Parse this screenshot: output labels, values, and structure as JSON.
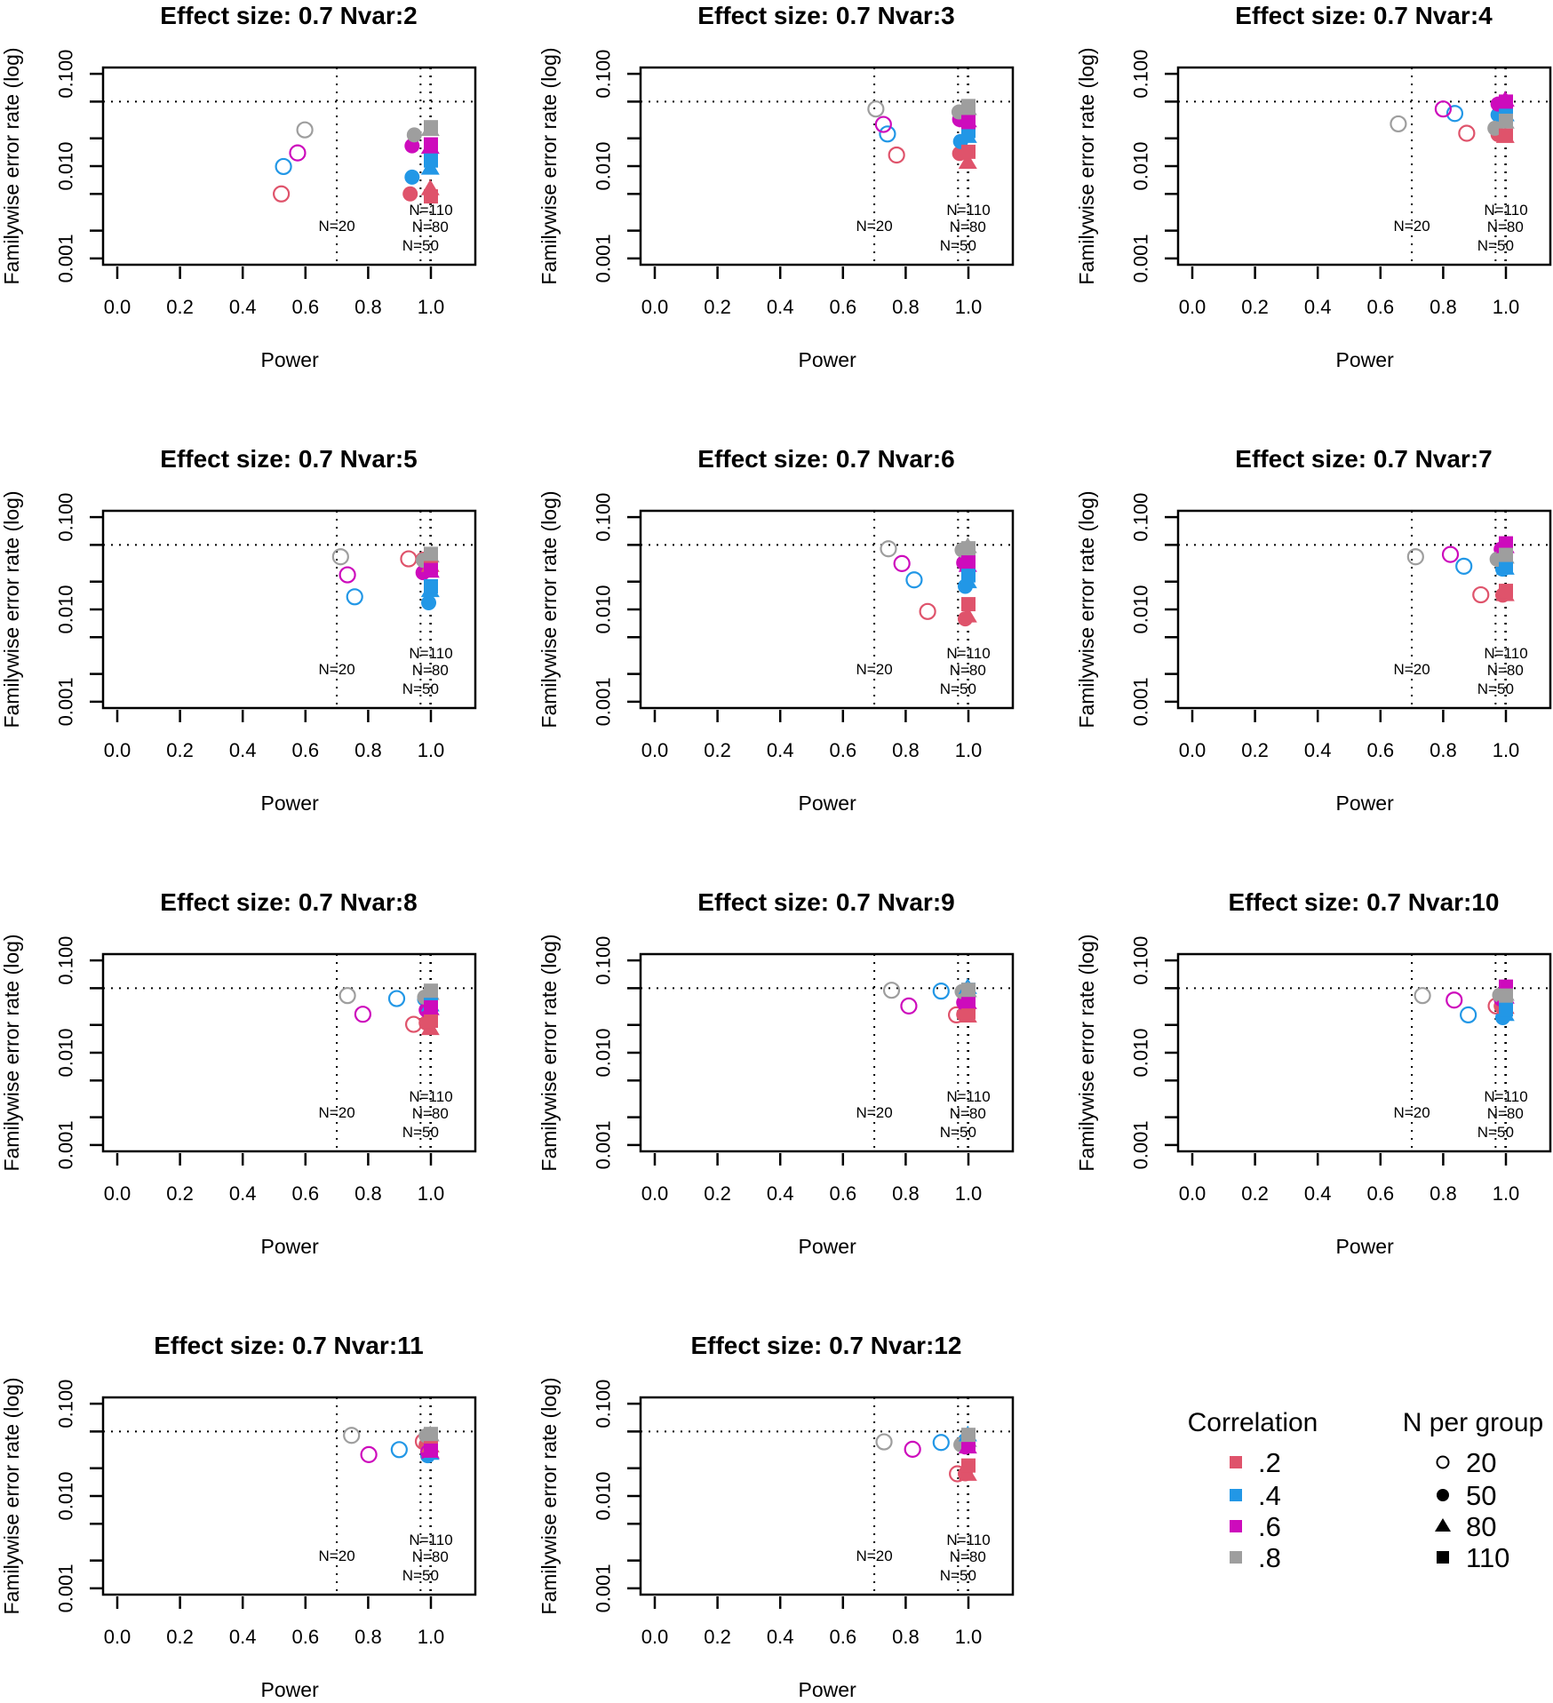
{
  "chart_data": {
    "type": "scatter",
    "layout": "small multiples, 3 columns",
    "xlabel": "Power",
    "ylabel": "Familywise error rate (log)",
    "xlim": [
      0,
      1.1
    ],
    "ylim": [
      0.001,
      0.1
    ],
    "y_scale": "log",
    "x_ticks": [
      "0.0",
      "0.2",
      "0.4",
      "0.6",
      "0.8",
      "1.0"
    ],
    "x_tick_values": [
      0,
      0.2,
      0.4,
      0.6,
      0.8,
      1.0
    ],
    "y_ticks": [
      "0.001",
      "0.010",
      "0.100"
    ],
    "y_tick_values": [
      0.001,
      0.01,
      0.1
    ],
    "y_minor_ticks": [
      0.001,
      0.002,
      0.005,
      0.01,
      0.02,
      0.05,
      0.1
    ],
    "reference_hline": 0.05,
    "reference_vlines": [
      {
        "label": "N=20",
        "power": 0.7
      },
      {
        "label": "N=50",
        "power": 0.967
      },
      {
        "label": "N=80",
        "power": 0.998
      },
      {
        "label": "N=110",
        "power": 1.0
      }
    ],
    "grid": false,
    "correlations": [
      {
        "label": ".2",
        "color": "#DF536B"
      },
      {
        "label": ".4",
        "color": "#2297E6"
      },
      {
        "label": ".6",
        "color": "#CD0BBC"
      },
      {
        "label": ".8",
        "color": "#9E9E9E"
      }
    ],
    "n_groups": [
      {
        "label": "20",
        "shape": "open-circle"
      },
      {
        "label": "50",
        "shape": "filled-circle"
      },
      {
        "label": "80",
        "shape": "filled-triangle"
      },
      {
        "label": "110",
        "shape": "filled-square"
      }
    ],
    "point_format": "points[N label] = list of [power, familywise error rate] in correlation order .2, .4, .6, .8",
    "panels": [
      {
        "title": "Effect size: 0.7  Nvar:2",
        "points": {
          "20": [
            [
              0.523,
              0.005
            ],
            [
              0.53,
              0.0099
            ],
            [
              0.575,
              0.0139
            ],
            [
              0.598,
              0.0247
            ]
          ],
          "50": [
            [
              0.934,
              0.005
            ],
            [
              0.94,
              0.0076
            ],
            [
              0.94,
              0.0166
            ],
            [
              0.947,
              0.0218
            ]
          ],
          "80": [
            [
              0.998,
              0.0057
            ],
            [
              0.998,
              0.0095
            ],
            [
              0.998,
              0.016
            ],
            [
              0.998,
              0.025
            ]
          ],
          "110": [
            [
              1,
              0.0047
            ],
            [
              1,
              0.0115
            ],
            [
              1,
              0.0172
            ],
            [
              1,
              0.0264
            ]
          ]
        }
      },
      {
        "title": "Effect size: 0.7  Nvar:3",
        "points": {
          "20": [
            [
              0.771,
              0.0132
            ],
            [
              0.742,
              0.0223
            ],
            [
              0.729,
              0.0283
            ],
            [
              0.705,
              0.0416
            ]
          ],
          "50": [
            [
              0.972,
              0.0137
            ],
            [
              0.975,
              0.0185
            ],
            [
              0.972,
              0.032
            ],
            [
              0.97,
              0.0386
            ]
          ],
          "80": [
            [
              0.998,
              0.011
            ],
            [
              0.998,
              0.021
            ],
            [
              0.998,
              0.031
            ],
            [
              0.998,
              0.042
            ]
          ],
          "110": [
            [
              1,
              0.0143
            ],
            [
              1,
              0.024
            ],
            [
              1,
              0.03
            ],
            [
              1,
              0.0448
            ]
          ]
        }
      },
      {
        "title": "Effect size: 0.7  Nvar:4",
        "points": {
          "20": [
            [
              0.875,
              0.0227
            ],
            [
              0.837,
              0.0372
            ],
            [
              0.8,
              0.0416
            ],
            [
              0.657,
              0.0287
            ]
          ],
          "50": [
            [
              0.975,
              0.022
            ],
            [
              0.975,
              0.036
            ],
            [
              0.975,
              0.047
            ],
            [
              0.965,
              0.0257
            ]
          ],
          "80": [
            [
              0.998,
              0.021
            ],
            [
              0.998,
              0.036
            ],
            [
              0.998,
              0.052
            ],
            [
              0.998,
              0.03
            ]
          ],
          "110": [
            [
              1,
              0.0214
            ],
            [
              1,
              0.037
            ],
            [
              1,
              0.05
            ],
            [
              1,
              0.031
            ]
          ]
        }
      },
      {
        "title": "Effect size: 0.7  Nvar:5",
        "points": {
          "20": [
            [
              0.929,
              0.0353
            ],
            [
              0.757,
              0.0137
            ],
            [
              0.734,
              0.0237
            ],
            [
              0.712,
              0.0372
            ]
          ],
          "50": [
            [
              0.975,
              0.035
            ],
            [
              0.993,
              0.0118
            ],
            [
              0.975,
              0.025
            ],
            [
              0.976,
              0.034
            ]
          ],
          "80": [
            [
              0.998,
              0.03
            ],
            [
              0.998,
              0.016
            ],
            [
              0.998,
              0.026
            ],
            [
              0.998,
              0.038
            ]
          ],
          "110": [
            [
              1,
              0.036
            ],
            [
              1,
              0.0178
            ],
            [
              1,
              0.0267
            ],
            [
              1,
              0.04
            ]
          ]
        }
      },
      {
        "title": "Effect size: 0.7  Nvar:6",
        "points": {
          "20": [
            [
              0.87,
              0.0095
            ],
            [
              0.827,
              0.0209
            ],
            [
              0.788,
              0.0314
            ],
            [
              0.745,
              0.0454
            ]
          ],
          "50": [
            [
              0.99,
              0.0079
            ],
            [
              0.99,
              0.0178
            ],
            [
              0.985,
              0.032
            ],
            [
              0.98,
              0.044
            ]
          ],
          "80": [
            [
              0.998,
              0.0085
            ],
            [
              0.998,
              0.02
            ],
            [
              0.998,
              0.03
            ],
            [
              0.998,
              0.048
            ]
          ],
          "110": [
            [
              1,
              0.0114
            ],
            [
              1,
              0.0234
            ],
            [
              1,
              0.033
            ],
            [
              1,
              0.046
            ]
          ]
        }
      },
      {
        "title": "Effect size: 0.7  Nvar:7",
        "points": {
          "20": [
            [
              0.92,
              0.0144
            ],
            [
              0.866,
              0.0294
            ],
            [
              0.823,
              0.0394
            ],
            [
              0.712,
              0.0372
            ]
          ],
          "50": [
            [
              0.99,
              0.0143
            ],
            [
              0.99,
              0.0273
            ],
            [
              0.985,
              0.045
            ],
            [
              0.972,
              0.035
            ]
          ],
          "80": [
            [
              0.998,
              0.0145
            ],
            [
              0.998,
              0.028
            ],
            [
              0.998,
              0.048
            ],
            [
              0.998,
              0.037
            ]
          ],
          "110": [
            [
              1,
              0.0159
            ],
            [
              1,
              0.03
            ],
            [
              1,
              0.052
            ],
            [
              1,
              0.039
            ]
          ]
        }
      },
      {
        "title": "Effect size: 0.7  Nvar:8",
        "points": {
          "20": [
            [
              0.945,
              0.0203
            ],
            [
              0.891,
              0.0386
            ],
            [
              0.783,
              0.0261
            ],
            [
              0.734,
              0.0416
            ]
          ],
          "50": [
            [
              0.985,
              0.021
            ],
            [
              0.98,
              0.038
            ],
            [
              0.985,
              0.029
            ],
            [
              0.98,
              0.04
            ]
          ],
          "80": [
            [
              0.998,
              0.0183
            ],
            [
              0.998,
              0.033
            ],
            [
              0.998,
              0.03
            ],
            [
              0.998,
              0.044
            ]
          ],
          "110": [
            [
              1,
              0.0222
            ],
            [
              1,
              0.036
            ],
            [
              1,
              0.031
            ],
            [
              1,
              0.047
            ]
          ]
        }
      },
      {
        "title": "Effect size: 0.7  Nvar:9",
        "points": {
          "20": [
            [
              0.962,
              0.0257
            ],
            [
              0.913,
              0.0465
            ],
            [
              0.81,
              0.0321
            ],
            [
              0.755,
              0.0475
            ]
          ],
          "50": [
            [
              0.985,
              0.026
            ],
            [
              0.985,
              0.046
            ],
            [
              0.985,
              0.035
            ],
            [
              0.98,
              0.046
            ]
          ],
          "80": [
            [
              0.998,
              0.025
            ],
            [
              0.998,
              0.051
            ],
            [
              0.998,
              0.035
            ],
            [
              0.998,
              0.047
            ]
          ],
          "110": [
            [
              1,
              0.0277
            ],
            [
              1,
              0.048
            ],
            [
              1,
              0.036
            ],
            [
              1,
              0.048
            ]
          ]
        }
      },
      {
        "title": "Effect size: 0.7  Nvar:10",
        "points": {
          "20": [
            [
              0.969,
              0.0321
            ],
            [
              0.88,
              0.0257
            ],
            [
              0.835,
              0.0372
            ],
            [
              0.734,
              0.0416
            ]
          ],
          "50": [
            [
              0.985,
              0.032
            ],
            [
              0.99,
              0.024
            ],
            [
              0.985,
              0.038
            ],
            [
              0.98,
              0.042
            ]
          ],
          "80": [
            [
              0.998,
              0.031
            ],
            [
              0.998,
              0.026
            ],
            [
              0.998,
              0.04
            ],
            [
              0.998,
              0.043
            ]
          ],
          "110": [
            [
              1,
              0.031
            ],
            [
              1,
              0.0294
            ],
            [
              1,
              0.052
            ],
            [
              1,
              0.0416
            ]
          ]
        }
      },
      {
        "title": "Effect size: 0.7  Nvar:11",
        "points": {
          "20": [
            [
              0.976,
              0.039
            ],
            [
              0.899,
              0.0318
            ],
            [
              0.802,
              0.0281
            ],
            [
              0.747,
              0.0454
            ]
          ],
          "50": [
            [
              0.985,
              0.036
            ],
            [
              0.99,
              0.0273
            ],
            [
              0.99,
              0.03
            ],
            [
              0.985,
              0.045
            ]
          ],
          "80": [
            [
              0.998,
              0.035
            ],
            [
              0.998,
              0.029
            ],
            [
              0.998,
              0.03
            ],
            [
              0.998,
              0.046
            ]
          ],
          "110": [
            [
              1,
              0.037
            ],
            [
              1,
              0.03
            ],
            [
              1,
              0.031
            ],
            [
              1,
              0.047
            ]
          ]
        }
      },
      {
        "title": "Effect size: 0.7  Nvar:12",
        "points": {
          "20": [
            [
              0.965,
              0.0174
            ],
            [
              0.913,
              0.038
            ],
            [
              0.822,
              0.0321
            ],
            [
              0.731,
              0.0386
            ]
          ],
          "50": [
            [
              0.99,
              0.0174
            ],
            [
              0.99,
              0.04
            ],
            [
              0.99,
              0.034
            ],
            [
              0.976,
              0.036
            ]
          ],
          "80": [
            [
              0.998,
              0.0172
            ],
            [
              0.998,
              0.046
            ],
            [
              0.998,
              0.034
            ],
            [
              0.998,
              0.04
            ]
          ],
          "110": [
            [
              1,
              0.0214
            ],
            [
              1,
              0.044
            ],
            [
              1,
              0.035
            ],
            [
              1,
              0.046
            ]
          ]
        }
      }
    ]
  },
  "legend": {
    "correlation_title": "Correlation",
    "n_title": "N per group"
  }
}
